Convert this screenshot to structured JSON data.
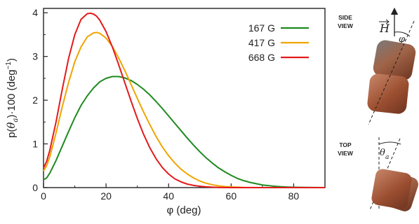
{
  "chart_data": {
    "type": "line",
    "title": "",
    "xlabel": "φ (deg)",
    "ylabel_parts": [
      "p(",
      "θ",
      "a",
      ")·100 (deg",
      "−1",
      ")"
    ],
    "xlim": [
      0,
      90
    ],
    "ylim": [
      0,
      4.1
    ],
    "xticks": [
      "0",
      "20",
      "40",
      "60",
      "80"
    ],
    "yticks": [
      "0",
      "1",
      "2",
      "3",
      "4"
    ],
    "grid": false,
    "legend_position": "top-right",
    "series": [
      {
        "name": "167 G",
        "color": "#1f8a1f",
        "x": [
          0,
          1,
          2,
          4,
          6,
          8,
          10,
          12,
          14,
          16,
          18,
          20,
          22,
          24,
          26,
          28,
          30,
          32,
          34,
          36,
          38,
          40,
          42,
          44,
          46,
          48,
          50,
          52,
          54,
          56,
          58,
          60,
          62,
          64,
          66,
          68,
          70,
          72,
          74,
          76,
          78,
          80,
          84,
          90
        ],
        "y": [
          0.18,
          0.22,
          0.33,
          0.62,
          0.95,
          1.28,
          1.6,
          1.88,
          2.1,
          2.28,
          2.42,
          2.5,
          2.54,
          2.54,
          2.51,
          2.45,
          2.36,
          2.25,
          2.12,
          1.97,
          1.81,
          1.64,
          1.47,
          1.3,
          1.13,
          0.97,
          0.82,
          0.68,
          0.56,
          0.45,
          0.36,
          0.28,
          0.21,
          0.16,
          0.12,
          0.09,
          0.06,
          0.045,
          0.03,
          0.02,
          0.013,
          0.008,
          0.004,
          0.0
        ]
      },
      {
        "name": "417 G",
        "color": "#f0a500",
        "x": [
          0,
          1,
          2,
          4,
          6,
          8,
          10,
          12,
          14,
          16,
          17,
          18,
          20,
          22,
          24,
          26,
          28,
          30,
          32,
          34,
          36,
          38,
          40,
          42,
          44,
          46,
          48,
          50,
          52,
          54,
          56,
          58,
          60,
          64,
          70,
          90
        ],
        "y": [
          0.38,
          0.5,
          0.7,
          1.25,
          1.85,
          2.4,
          2.88,
          3.22,
          3.45,
          3.54,
          3.55,
          3.53,
          3.42,
          3.23,
          2.97,
          2.68,
          2.36,
          2.04,
          1.73,
          1.44,
          1.17,
          0.93,
          0.73,
          0.56,
          0.42,
          0.31,
          0.22,
          0.15,
          0.1,
          0.065,
          0.04,
          0.025,
          0.015,
          0.005,
          0.001,
          0.0
        ]
      },
      {
        "name": "668 G",
        "color": "#e31a1c",
        "x": [
          0,
          1,
          2,
          4,
          6,
          8,
          10,
          12,
          14,
          15,
          16,
          17,
          18,
          20,
          22,
          24,
          26,
          28,
          30,
          32,
          34,
          36,
          38,
          40,
          42,
          44,
          46,
          48,
          50,
          52,
          54,
          56,
          60,
          90
        ],
        "y": [
          0.45,
          0.6,
          0.85,
          1.5,
          2.25,
          2.95,
          3.5,
          3.85,
          3.98,
          3.99,
          3.97,
          3.92,
          3.83,
          3.57,
          3.22,
          2.82,
          2.4,
          1.98,
          1.58,
          1.22,
          0.91,
          0.66,
          0.46,
          0.31,
          0.2,
          0.13,
          0.08,
          0.05,
          0.03,
          0.018,
          0.01,
          0.005,
          0.001,
          0.0
        ]
      }
    ]
  },
  "illustration": {
    "side_view_label": [
      "SIDE",
      "VIEW"
    ],
    "top_view_label": [
      "TOP",
      "VIEW"
    ],
    "field_symbol": "H",
    "angle_symbol_side": "φ",
    "angle_symbol_top": "θ",
    "angle_subscript_top": "a",
    "cube_color": "#a0583a",
    "cube_highlight": "#c27a57"
  }
}
